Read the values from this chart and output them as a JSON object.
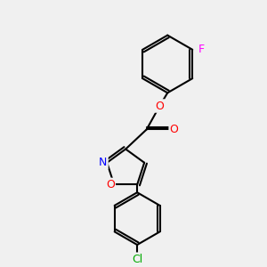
{
  "background_color": "#f0f0f0",
  "bond_color": "#000000",
  "atom_colors": {
    "O": "#ff0000",
    "N": "#0000ff",
    "F": "#ff00ff",
    "Cl": "#00aa00",
    "C": "#000000"
  },
  "figsize": [
    3.0,
    3.0
  ],
  "dpi": 100
}
